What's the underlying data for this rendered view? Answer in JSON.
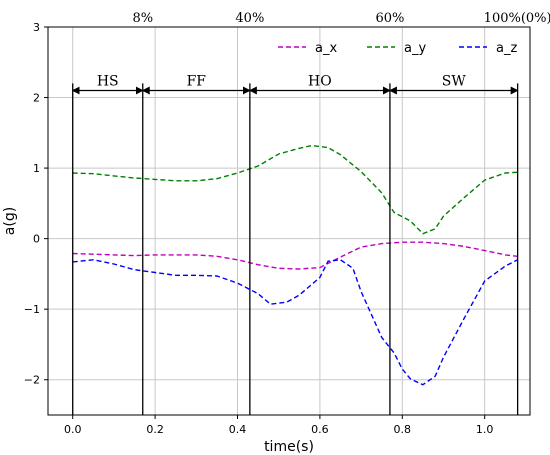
{
  "chart_data": {
    "type": "line",
    "title": "",
    "xlabel": "time(s)",
    "ylabel": "a(g)",
    "xlim": [
      -0.06,
      1.11
    ],
    "ylim": [
      -2.5,
      3
    ],
    "xticks": [
      0.0,
      0.2,
      0.4,
      0.6,
      0.8,
      1.0
    ],
    "xtick_labels": [
      "0.0",
      "0.2",
      "0.4",
      "0.6",
      "0.8",
      "1.0"
    ],
    "yticks": [
      -2,
      -1,
      0,
      1,
      2,
      3
    ],
    "ytick_labels": [
      "−2",
      "−1",
      "0",
      "1",
      "2",
      "3"
    ],
    "grid": true,
    "legend_position": "top-right",
    "series": [
      {
        "name": "a_x",
        "color": "#bf00bf",
        "x": [
          0.0,
          0.05,
          0.1,
          0.15,
          0.2,
          0.25,
          0.3,
          0.35,
          0.4,
          0.45,
          0.5,
          0.55,
          0.6,
          0.65,
          0.7,
          0.75,
          0.8,
          0.85,
          0.9,
          0.95,
          1.0,
          1.05,
          1.08
        ],
        "values": [
          -0.21,
          -0.22,
          -0.23,
          -0.24,
          -0.23,
          -0.23,
          -0.23,
          -0.25,
          -0.3,
          -0.37,
          -0.42,
          -0.43,
          -0.41,
          -0.26,
          -0.12,
          -0.07,
          -0.05,
          -0.05,
          -0.07,
          -0.11,
          -0.17,
          -0.23,
          -0.25
        ]
      },
      {
        "name": "a_y",
        "color": "#008000",
        "x": [
          0.0,
          0.05,
          0.1,
          0.15,
          0.2,
          0.25,
          0.3,
          0.35,
          0.4,
          0.45,
          0.5,
          0.55,
          0.58,
          0.62,
          0.65,
          0.7,
          0.75,
          0.78,
          0.82,
          0.85,
          0.88,
          0.9,
          0.95,
          1.0,
          1.05,
          1.08
        ],
        "values": [
          0.93,
          0.92,
          0.89,
          0.86,
          0.84,
          0.82,
          0.82,
          0.85,
          0.93,
          1.03,
          1.2,
          1.28,
          1.32,
          1.29,
          1.19,
          0.95,
          0.65,
          0.37,
          0.25,
          0.07,
          0.14,
          0.32,
          0.58,
          0.83,
          0.93,
          0.94
        ]
      },
      {
        "name": "a_z",
        "color": "#0000ff",
        "x": [
          0.0,
          0.05,
          0.1,
          0.15,
          0.2,
          0.25,
          0.3,
          0.35,
          0.4,
          0.45,
          0.48,
          0.52,
          0.55,
          0.6,
          0.62,
          0.65,
          0.68,
          0.7,
          0.75,
          0.78,
          0.8,
          0.82,
          0.85,
          0.88,
          0.9,
          0.95,
          1.0,
          1.05,
          1.08
        ],
        "values": [
          -0.33,
          -0.3,
          -0.36,
          -0.44,
          -0.48,
          -0.52,
          -0.52,
          -0.53,
          -0.63,
          -0.78,
          -0.93,
          -0.9,
          -0.8,
          -0.55,
          -0.32,
          -0.3,
          -0.42,
          -0.75,
          -1.4,
          -1.62,
          -1.85,
          -1.99,
          -2.07,
          -1.95,
          -1.68,
          -1.13,
          -0.6,
          -0.39,
          -0.3
        ]
      }
    ],
    "phase_boundaries": [
      0.0,
      0.17,
      0.43,
      0.77,
      1.08
    ],
    "phases": [
      "HS",
      "FF",
      "HO",
      "SW"
    ],
    "phase_arrow_y": 2.1,
    "percent_labels": [
      {
        "text": "8%",
        "x": 0.17
      },
      {
        "text": "40%",
        "x": 0.43
      },
      {
        "text": "60%",
        "x": 0.77
      },
      {
        "text": "100%(0%)",
        "x": 1.08
      }
    ]
  }
}
